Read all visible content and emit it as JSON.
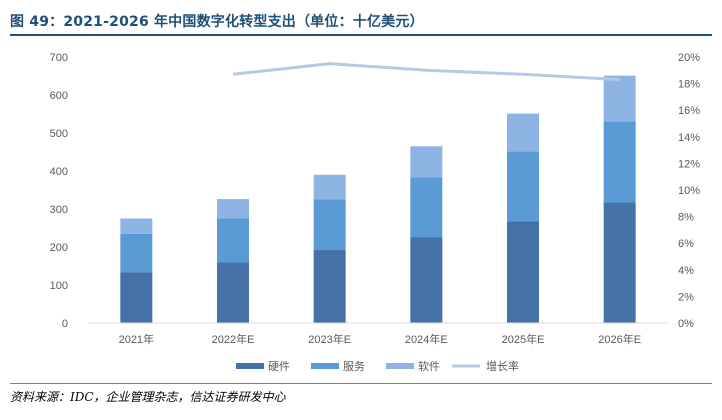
{
  "header": {
    "title": "图 49：2021-2026 年中国数字化转型支出（单位：十亿美元）"
  },
  "footer": {
    "source": "资料来源：IDC，企业管理杂志，信达证券研发中心"
  },
  "colors": {
    "hardware": "#4472a8",
    "service": "#5b9bd5",
    "software": "#8eb4e3",
    "growth": "#b4c9e4",
    "axis_text": "#595959",
    "title": "#1f4e79"
  },
  "chart_data": {
    "type": "bar",
    "stacked": true,
    "title": "",
    "xlabel": "",
    "ylabel": "",
    "categories": [
      "2021年",
      "2022年E",
      "2023年E",
      "2024年E",
      "2025年E",
      "2026年E"
    ],
    "series": [
      {
        "name": "硬件",
        "values": [
          133,
          160,
          192,
          225,
          267,
          317
        ]
      },
      {
        "name": "服务",
        "values": [
          102,
          115,
          133,
          158,
          185,
          213
        ]
      },
      {
        "name": "软件",
        "values": [
          40,
          51,
          65,
          82,
          99,
          121
        ]
      }
    ],
    "line_series": {
      "name": "增长率",
      "axis": "right",
      "values": [
        null,
        18.7,
        19.5,
        19.0,
        18.7,
        18.3
      ]
    },
    "ylim": [
      0,
      700
    ],
    "yticks": [
      "0",
      "100",
      "200",
      "300",
      "400",
      "500",
      "600",
      "700"
    ],
    "y2lim": [
      0,
      20
    ],
    "y2ticks": [
      "0%",
      "2%",
      "4%",
      "6%",
      "8%",
      "10%",
      "12%",
      "14%",
      "16%",
      "18%",
      "20%"
    ],
    "legend_position": "bottom",
    "grid": false
  }
}
